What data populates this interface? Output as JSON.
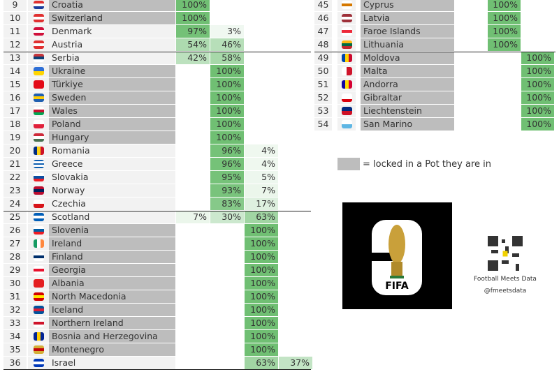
{
  "colors": {
    "locked": "#bdbdbd",
    "unlocked": "#f2f2f2",
    "green": "#4caf50"
  },
  "left_rows": [
    {
      "rank": "9",
      "country": "Croatia",
      "locked": true,
      "probs": [
        100,
        null,
        null,
        null
      ],
      "flag": {
        "dir": "h",
        "colors": [
          "#e03030",
          "#ffffff",
          "#1a3c9c"
        ]
      }
    },
    {
      "rank": "10",
      "country": "Switzerland",
      "locked": true,
      "probs": [
        100,
        null,
        null,
        null
      ],
      "flag": {
        "dir": "h",
        "colors": [
          "#e03030",
          "#ffffff",
          "#e03030"
        ]
      }
    },
    {
      "rank": "11",
      "country": "Denmark",
      "locked": false,
      "probs": [
        97,
        3,
        null,
        null
      ],
      "flag": {
        "dir": "h",
        "colors": [
          "#d0103a",
          "#ffffff",
          "#d0103a"
        ]
      }
    },
    {
      "rank": "12",
      "country": "Austria",
      "locked": false,
      "probs": [
        54,
        46,
        null,
        null
      ],
      "flag": {
        "dir": "h",
        "colors": [
          "#e03030",
          "#ffffff",
          "#e03030"
        ]
      }
    },
    {
      "rank": "13",
      "country": "Serbia",
      "locked": false,
      "probs": [
        42,
        58,
        null,
        null
      ],
      "flag": {
        "dir": "h",
        "colors": [
          "#c6363c",
          "#0c4076",
          "#ffffff"
        ]
      }
    },
    {
      "rank": "14",
      "country": "Ukraine",
      "locked": true,
      "probs": [
        null,
        100,
        null,
        null
      ],
      "flag": {
        "dir": "h",
        "colors": [
          "#2f6fd6",
          "#ffd500"
        ]
      }
    },
    {
      "rank": "15",
      "country": "Türkiye",
      "locked": true,
      "probs": [
        null,
        100,
        null,
        null
      ],
      "flag": {
        "dir": "h",
        "colors": [
          "#e30a17"
        ]
      }
    },
    {
      "rank": "16",
      "country": "Sweden",
      "locked": true,
      "probs": [
        null,
        100,
        null,
        null
      ],
      "flag": {
        "dir": "h",
        "colors": [
          "#1f5fb0",
          "#fecc02",
          "#1f5fb0"
        ]
      }
    },
    {
      "rank": "17",
      "country": "Wales",
      "locked": true,
      "probs": [
        null,
        100,
        null,
        null
      ],
      "flag": {
        "dir": "h",
        "colors": [
          "#ffffff",
          "#c8102e",
          "#00a651"
        ]
      }
    },
    {
      "rank": "18",
      "country": "Poland",
      "locked": true,
      "probs": [
        null,
        100,
        null,
        null
      ],
      "flag": {
        "dir": "h",
        "colors": [
          "#ffffff",
          "#e0203a"
        ]
      }
    },
    {
      "rank": "19",
      "country": "Hungary",
      "locked": true,
      "probs": [
        null,
        100,
        null,
        null
      ],
      "flag": {
        "dir": "h",
        "colors": [
          "#ce2939",
          "#ffffff",
          "#477050"
        ]
      }
    },
    {
      "rank": "20",
      "country": "Romania",
      "locked": false,
      "probs": [
        null,
        96,
        4,
        null
      ],
      "flag": {
        "dir": "v",
        "colors": [
          "#002b7f",
          "#fcd116",
          "#ce1126"
        ]
      }
    },
    {
      "rank": "21",
      "country": "Greece",
      "locked": false,
      "probs": [
        null,
        96,
        4,
        null
      ],
      "flag": {
        "dir": "h",
        "colors": [
          "#0d5eaf",
          "#ffffff",
          "#0d5eaf",
          "#ffffff",
          "#0d5eaf"
        ]
      }
    },
    {
      "rank": "22",
      "country": "Slovakia",
      "locked": false,
      "probs": [
        null,
        95,
        5,
        null
      ],
      "flag": {
        "dir": "h",
        "colors": [
          "#ffffff",
          "#0b4ea2",
          "#ee1c25"
        ]
      }
    },
    {
      "rank": "23",
      "country": "Norway",
      "locked": false,
      "probs": [
        null,
        93,
        7,
        null
      ],
      "flag": {
        "dir": "h",
        "colors": [
          "#ba0c2f",
          "#00205b",
          "#ba0c2f"
        ]
      }
    },
    {
      "rank": "24",
      "country": "Czechia",
      "locked": false,
      "probs": [
        null,
        83,
        17,
        null
      ],
      "flag": {
        "dir": "h",
        "colors": [
          "#ffffff",
          "#d7141a"
        ]
      }
    },
    {
      "rank": "25",
      "country": "Scotland",
      "locked": false,
      "probs": [
        7,
        30,
        63,
        null
      ],
      "flag": {
        "dir": "h",
        "colors": [
          "#005eb8",
          "#ffffff",
          "#005eb8"
        ]
      }
    },
    {
      "rank": "26",
      "country": "Slovenia",
      "locked": true,
      "probs": [
        null,
        null,
        100,
        null
      ],
      "flag": {
        "dir": "h",
        "colors": [
          "#ffffff",
          "#005da4",
          "#ed1c24"
        ]
      }
    },
    {
      "rank": "27",
      "country": "Ireland",
      "locked": true,
      "probs": [
        null,
        null,
        100,
        null
      ],
      "flag": {
        "dir": "v",
        "colors": [
          "#169b62",
          "#ffffff",
          "#ff883e"
        ]
      }
    },
    {
      "rank": "28",
      "country": "Finland",
      "locked": true,
      "probs": [
        null,
        null,
        100,
        null
      ],
      "flag": {
        "dir": "h",
        "colors": [
          "#ffffff",
          "#002f6c",
          "#ffffff"
        ]
      }
    },
    {
      "rank": "29",
      "country": "Georgia",
      "locked": true,
      "probs": [
        null,
        null,
        100,
        null
      ],
      "flag": {
        "dir": "h",
        "colors": [
          "#ffffff",
          "#e8112d",
          "#ffffff"
        ]
      }
    },
    {
      "rank": "30",
      "country": "Albania",
      "locked": true,
      "probs": [
        null,
        null,
        100,
        null
      ],
      "flag": {
        "dir": "h",
        "colors": [
          "#e41e20"
        ]
      }
    },
    {
      "rank": "31",
      "country": "North Macedonia",
      "locked": true,
      "probs": [
        null,
        null,
        100,
        null
      ],
      "flag": {
        "dir": "h",
        "colors": [
          "#d20000",
          "#ffe600",
          "#d20000"
        ]
      }
    },
    {
      "rank": "32",
      "country": "Iceland",
      "locked": true,
      "probs": [
        null,
        null,
        100,
        null
      ],
      "flag": {
        "dir": "h",
        "colors": [
          "#02529c",
          "#dc1e35",
          "#02529c"
        ]
      }
    },
    {
      "rank": "33",
      "country": "Northern Ireland",
      "locked": true,
      "probs": [
        null,
        null,
        100,
        null
      ],
      "flag": {
        "dir": "h",
        "colors": [
          "#ffffff",
          "#cf142b",
          "#ffffff"
        ]
      }
    },
    {
      "rank": "34",
      "country": "Bosnia and Herzegovina",
      "locked": true,
      "probs": [
        null,
        null,
        100,
        null
      ],
      "flag": {
        "dir": "v",
        "colors": [
          "#002395",
          "#fecb00",
          "#002395"
        ]
      }
    },
    {
      "rank": "35",
      "country": "Montenegro",
      "locked": true,
      "probs": [
        null,
        null,
        100,
        null
      ],
      "flag": {
        "dir": "h",
        "colors": [
          "#d4af37",
          "#c40308",
          "#d4af37"
        ]
      }
    },
    {
      "rank": "36",
      "country": "Israel",
      "locked": false,
      "probs": [
        null,
        null,
        63,
        37
      ],
      "flag": {
        "dir": "h",
        "colors": [
          "#0038b8",
          "#ffffff",
          "#0038b8"
        ]
      }
    }
  ],
  "right_rows": [
    {
      "rank": "45",
      "country": "Cyprus",
      "locked": true,
      "probs": [
        null,
        100,
        null
      ],
      "flag": {
        "dir": "h",
        "colors": [
          "#ffffff",
          "#d57800",
          "#ffffff"
        ]
      }
    },
    {
      "rank": "46",
      "country": "Latvia",
      "locked": true,
      "probs": [
        null,
        100,
        null
      ],
      "flag": {
        "dir": "h",
        "colors": [
          "#9e3039",
          "#ffffff",
          "#9e3039"
        ]
      }
    },
    {
      "rank": "47",
      "country": "Faroe Islands",
      "locked": true,
      "probs": [
        null,
        100,
        null
      ],
      "flag": {
        "dir": "h",
        "colors": [
          "#ffffff",
          "#ed2939",
          "#ffffff"
        ]
      }
    },
    {
      "rank": "48",
      "country": "Lithuania",
      "locked": true,
      "probs": [
        null,
        100,
        null
      ],
      "flag": {
        "dir": "h",
        "colors": [
          "#fdb913",
          "#006a44",
          "#c1272d"
        ]
      }
    },
    {
      "rank": "49",
      "country": "Moldova",
      "locked": true,
      "probs": [
        null,
        null,
        100
      ],
      "flag": {
        "dir": "v",
        "colors": [
          "#0046ae",
          "#ffd200",
          "#cc092f"
        ]
      }
    },
    {
      "rank": "50",
      "country": "Malta",
      "locked": true,
      "probs": [
        null,
        null,
        100
      ],
      "flag": {
        "dir": "v",
        "colors": [
          "#ffffff",
          "#cf142b"
        ]
      }
    },
    {
      "rank": "51",
      "country": "Andorra",
      "locked": true,
      "probs": [
        null,
        null,
        100
      ],
      "flag": {
        "dir": "v",
        "colors": [
          "#10069f",
          "#fedd00",
          "#d50032"
        ]
      }
    },
    {
      "rank": "52",
      "country": "Gibraltar",
      "locked": true,
      "probs": [
        null,
        null,
        100
      ],
      "flag": {
        "dir": "h",
        "colors": [
          "#ffffff",
          "#ffffff",
          "#da000c"
        ]
      }
    },
    {
      "rank": "53",
      "country": "Liechtenstein",
      "locked": true,
      "probs": [
        null,
        null,
        100
      ],
      "flag": {
        "dir": "h",
        "colors": [
          "#002b7f",
          "#ce1126"
        ]
      }
    },
    {
      "rank": "54",
      "country": "San Marino",
      "locked": true,
      "probs": [
        null,
        null,
        100
      ],
      "flag": {
        "dir": "h",
        "colors": [
          "#ffffff",
          "#5eb6e4"
        ]
      }
    }
  ],
  "legend": {
    "text": "= locked in a Pot they are in"
  },
  "logo": {
    "text": "FIFA",
    "number": "26"
  },
  "credit": {
    "name": "Football Meets Data",
    "handle": "@fmeetsdata"
  }
}
